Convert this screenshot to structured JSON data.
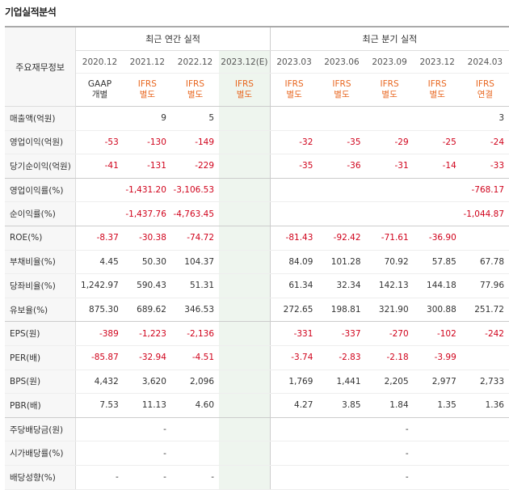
{
  "title": "기업실적분석",
  "row_header": "주요재무정보",
  "groups": {
    "annual": "최근 연간 실적",
    "quarter": "최근 분기 실적"
  },
  "periods": [
    "2020.12",
    "2021.12",
    "2022.12",
    "2023.12(E)",
    "2023.03",
    "2023.06",
    "2023.09",
    "2023.12",
    "2024.03"
  ],
  "standards": [
    {
      "l1": "GAAP",
      "l2": "개별"
    },
    {
      "l1": "IFRS",
      "l2": "별도"
    },
    {
      "l1": "IFRS",
      "l2": "별도"
    },
    {
      "l1": "IFRS",
      "l2": "별도"
    },
    {
      "l1": "IFRS",
      "l2": "별도"
    },
    {
      "l1": "IFRS",
      "l2": "별도"
    },
    {
      "l1": "IFRS",
      "l2": "별도"
    },
    {
      "l1": "IFRS",
      "l2": "별도"
    },
    {
      "l1": "IFRS",
      "l2": "연결"
    }
  ],
  "rows": [
    {
      "label": "매출액(억원)",
      "values": [
        "",
        "9",
        "5",
        "",
        "",
        "",
        "",
        "",
        "3"
      ]
    },
    {
      "label": "영업이익(억원)",
      "values": [
        "-53",
        "-130",
        "-149",
        "",
        "-32",
        "-35",
        "-29",
        "-25",
        "-24"
      ]
    },
    {
      "label": "당기순이익(억원)",
      "values": [
        "-41",
        "-131",
        "-229",
        "",
        "-35",
        "-36",
        "-31",
        "-14",
        "-33"
      ]
    },
    {
      "label": "영업이익률(%)",
      "values": [
        "",
        "-1,431.20",
        "-3,106.53",
        "",
        "",
        "",
        "",
        "",
        "-768.17"
      ]
    },
    {
      "label": "순이익률(%)",
      "values": [
        "",
        "-1,437.76",
        "-4,763.45",
        "",
        "",
        "",
        "",
        "",
        "-1,044.87"
      ]
    },
    {
      "label": "ROE(%)",
      "values": [
        "-8.37",
        "-30.38",
        "-74.72",
        "",
        "-81.43",
        "-92.42",
        "-71.61",
        "-36.90",
        ""
      ]
    },
    {
      "label": "부채비율(%)",
      "values": [
        "4.45",
        "50.30",
        "104.37",
        "",
        "84.09",
        "101.28",
        "70.92",
        "57.85",
        "67.78"
      ]
    },
    {
      "label": "당좌비율(%)",
      "values": [
        "1,242.97",
        "590.43",
        "51.31",
        "",
        "61.34",
        "32.34",
        "142.13",
        "144.18",
        "77.96"
      ]
    },
    {
      "label": "유보율(%)",
      "values": [
        "875.30",
        "689.62",
        "346.53",
        "",
        "272.65",
        "198.81",
        "321.90",
        "300.88",
        "251.72"
      ]
    },
    {
      "label": "EPS(원)",
      "values": [
        "-389",
        "-1,223",
        "-2,136",
        "",
        "-331",
        "-337",
        "-270",
        "-102",
        "-242"
      ]
    },
    {
      "label": "PER(배)",
      "values": [
        "-85.87",
        "-32.94",
        "-4.51",
        "",
        "-3.74",
        "-2.83",
        "-2.18",
        "-3.99",
        ""
      ]
    },
    {
      "label": "BPS(원)",
      "values": [
        "4,432",
        "3,620",
        "2,096",
        "",
        "1,769",
        "1,441",
        "2,205",
        "2,977",
        "2,733"
      ]
    },
    {
      "label": "PBR(배)",
      "values": [
        "7.53",
        "11.13",
        "4.60",
        "",
        "4.27",
        "3.85",
        "1.84",
        "1.35",
        "1.36"
      ]
    },
    {
      "label": "주당배당금(원)",
      "values": [
        "",
        "-",
        "",
        "",
        "",
        "",
        "-",
        "",
        ""
      ]
    },
    {
      "label": "시가배당률(%)",
      "values": [
        "",
        "-",
        "",
        "",
        "",
        "",
        "-",
        "",
        ""
      ]
    },
    {
      "label": "배당성향(%)",
      "values": [
        "-",
        "-",
        "-",
        "",
        "",
        "",
        "-",
        "",
        ""
      ]
    }
  ]
}
